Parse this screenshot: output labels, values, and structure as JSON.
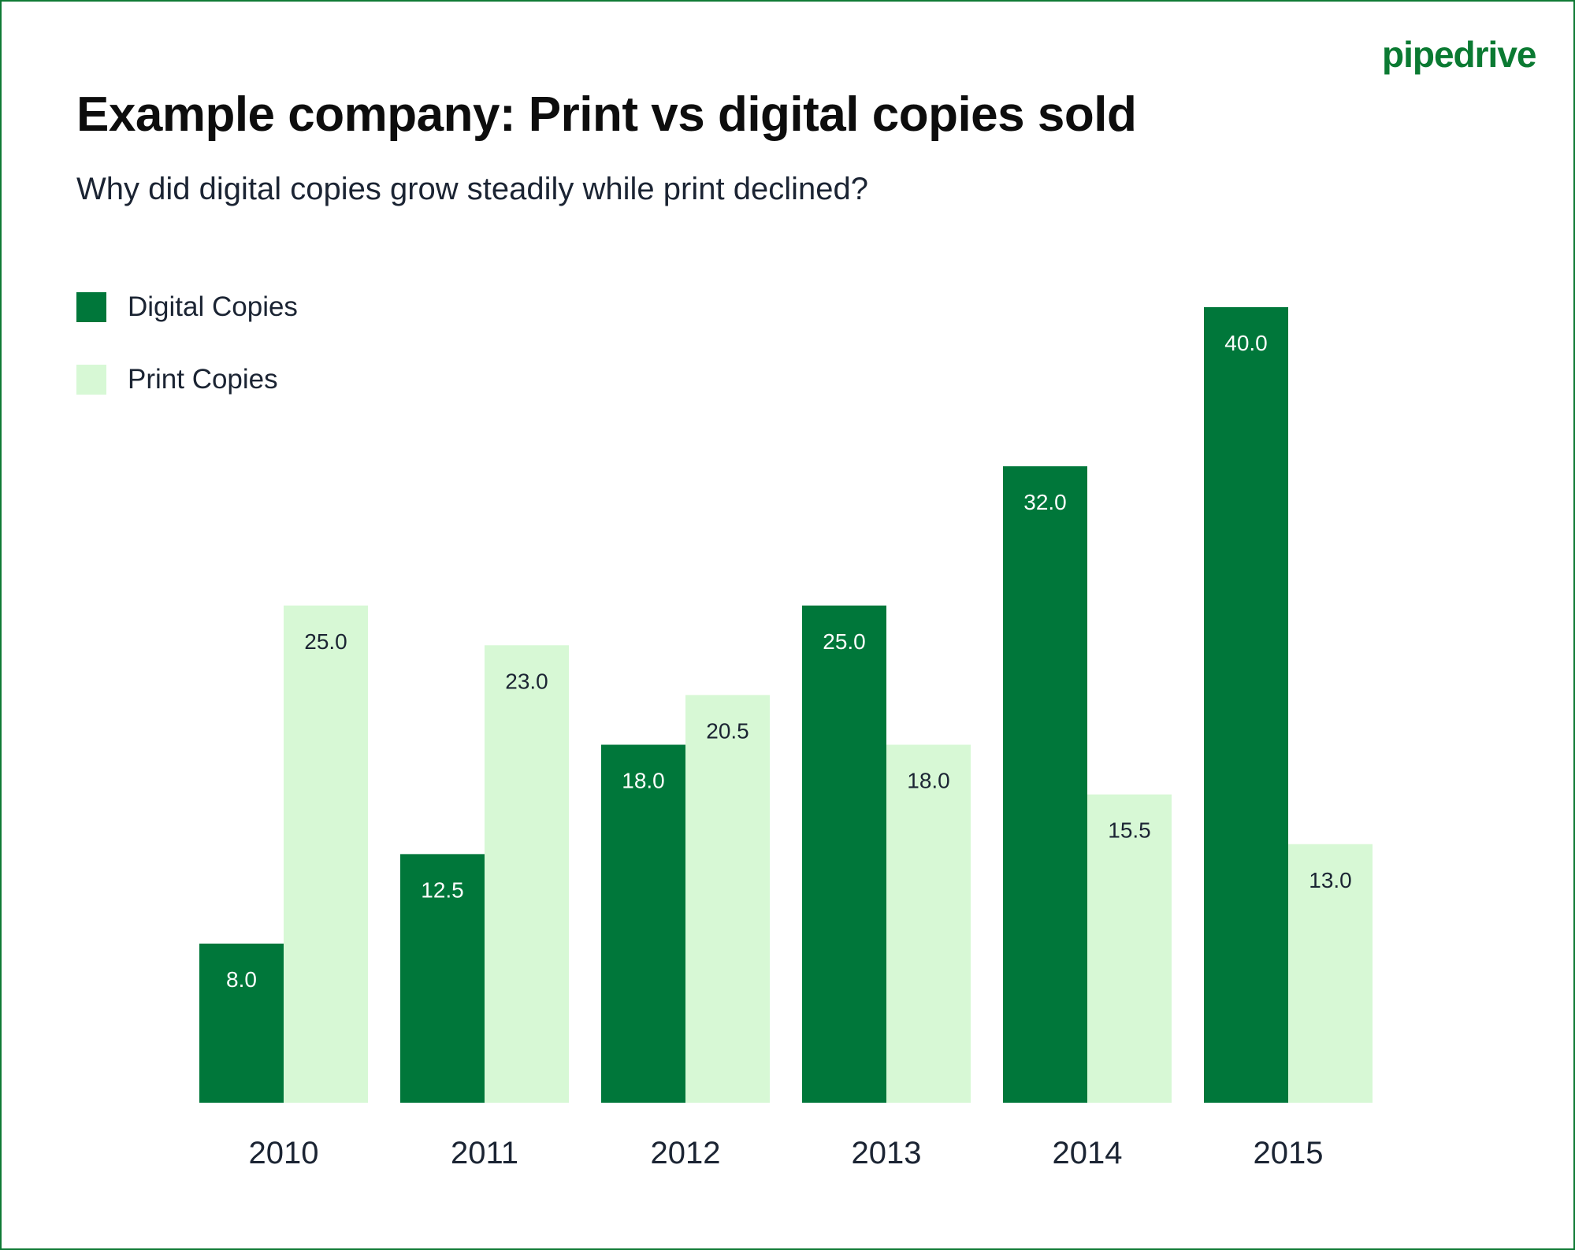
{
  "logo": "pipedrive",
  "chart_data": {
    "type": "bar",
    "title": "Example company: Print vs digital copies sold",
    "subtitle": "Why did digital copies grow steadily while print declined?",
    "categories": [
      "2010",
      "2011",
      "2012",
      "2013",
      "2014",
      "2015"
    ],
    "series": [
      {
        "name": "Digital Copies",
        "color": "#00773a",
        "label_color": "#ffffff",
        "values": [
          8.0,
          12.5,
          18.0,
          25.0,
          32.0,
          40.0
        ]
      },
      {
        "name": "Print Copies",
        "color": "#d7f8d5",
        "label_color": "#1b2433",
        "values": [
          25.0,
          23.0,
          20.5,
          18.0,
          15.5,
          13.0
        ]
      }
    ],
    "ylim": [
      0,
      40
    ],
    "grid": false,
    "y_axis_visible": false,
    "legend_position": "top-left",
    "data_labels": true
  }
}
